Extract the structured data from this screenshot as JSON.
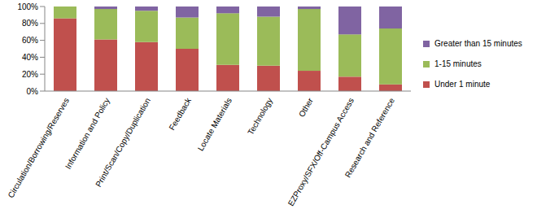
{
  "chart_data": {
    "type": "bar",
    "stacked": true,
    "grid": false,
    "legend": "right",
    "categories": [
      "Circulation/Borrowing/Reserves",
      "Information and Policy",
      "Print/Scan/Copy/Duplication",
      "Feedback",
      "Locate Materials",
      "Technology",
      "Other",
      "EZProxy/SFX/Off-Campus Access",
      "Research and Reference"
    ],
    "series": [
      {
        "name": "Under 1 minute",
        "color": "#c0504d",
        "values": [
          86,
          61,
          58,
          50,
          31,
          30,
          24,
          17,
          8
        ]
      },
      {
        "name": "1-15 minutes",
        "color": "#9bbb59",
        "values": [
          14,
          36,
          37,
          37,
          61,
          58,
          73,
          50,
          66
        ]
      },
      {
        "name": "Greater than 15 minutes",
        "color": "#8064a2",
        "values": [
          0,
          3,
          5,
          13,
          8,
          12,
          3,
          33,
          26
        ]
      }
    ],
    "ylim": [
      0,
      100
    ],
    "yticks": [
      {
        "value": 0,
        "label": "0%"
      },
      {
        "value": 20,
        "label": "20%"
      },
      {
        "value": 40,
        "label": "40%"
      },
      {
        "value": 60,
        "label": "60%"
      },
      {
        "value": 80,
        "label": "80%"
      },
      {
        "value": 100,
        "label": "100%"
      }
    ]
  }
}
